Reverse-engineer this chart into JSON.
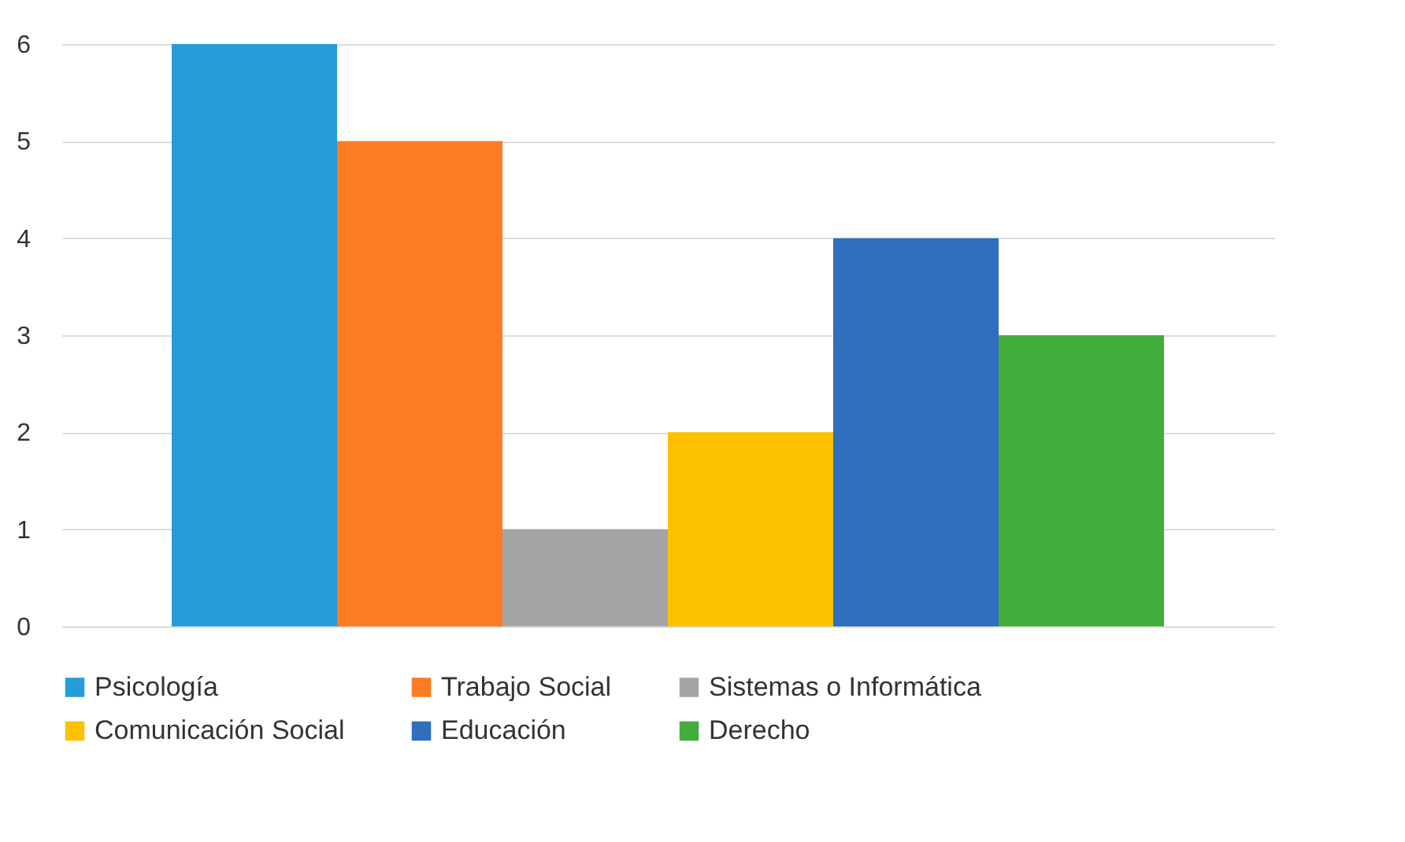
{
  "chart_data": {
    "type": "bar",
    "categories": [
      null
    ],
    "series": [
      {
        "name": "Psicología",
        "color": "#259cd8",
        "values": [
          6
        ]
      },
      {
        "name": "Trabajo Social",
        "color": "#fd7b23",
        "values": [
          5
        ]
      },
      {
        "name": "Sistemas o Informática",
        "color": "#a5a5a5",
        "values": [
          1
        ]
      },
      {
        "name": "Comunicación Social",
        "color": "#fec100",
        "values": [
          2
        ]
      },
      {
        "name": "Educación",
        "color": "#2f6fbd",
        "values": [
          4
        ]
      },
      {
        "name": "Derecho",
        "color": "#43ad3b",
        "values": [
          3
        ]
      }
    ],
    "ylim": [
      0,
      6
    ],
    "yticks": [
      0,
      1,
      2,
      3,
      4,
      5,
      6
    ],
    "grid": "y",
    "legend": "bottom",
    "tick_labels": "y"
  }
}
